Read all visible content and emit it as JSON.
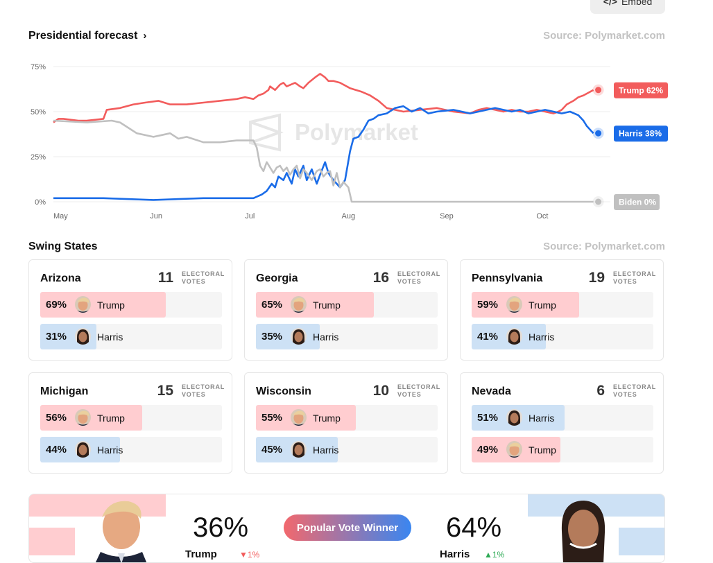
{
  "embed": {
    "label": "Embed",
    "icon": "code-icon"
  },
  "forecast": {
    "title": "Presidential forecast",
    "source": "Source: Polymarket.com"
  },
  "watermark": "Polymarket",
  "chart_data": {
    "type": "line",
    "x_labels": [
      "May",
      "Jun",
      "Jul",
      "Aug",
      "Sep",
      "Oct"
    ],
    "y_ticks": [
      "75%",
      "50%",
      "25%",
      "0%"
    ],
    "ylim": [
      0,
      75
    ],
    "grid": true,
    "x_unit": "days from May 1",
    "series": [
      {
        "name": "Trump",
        "label": "Trump 62%",
        "color": "#f25c5c",
        "x": [
          0,
          3,
          6,
          15,
          20,
          30,
          32,
          40,
          48,
          55,
          63,
          70,
          80,
          90,
          100,
          110,
          115,
          120,
          123,
          126,
          129,
          130,
          133,
          136,
          138,
          140,
          145,
          148,
          150,
          153,
          157,
          160,
          163,
          165,
          168,
          172,
          178,
          185,
          190,
          195,
          200,
          205,
          210,
          220,
          230,
          240,
          250,
          255,
          260,
          265,
          270,
          275,
          280,
          285,
          290,
          295,
          300,
          303,
          305,
          308,
          310,
          312,
          315,
          318,
          320,
          324
        ],
        "y": [
          44,
          46,
          46,
          45,
          45,
          46,
          51,
          52,
          54,
          55,
          56,
          54,
          54,
          55,
          56,
          57,
          58,
          57,
          59,
          60,
          62,
          64,
          62,
          65,
          66,
          64,
          66,
          64,
          63,
          66,
          69,
          71,
          69,
          67,
          67,
          66,
          63,
          61,
          59,
          56,
          52,
          51,
          50,
          51,
          52,
          50,
          49,
          51,
          52,
          51,
          50,
          51,
          50,
          50,
          51,
          50,
          49,
          50,
          51,
          54,
          55,
          56,
          58,
          59,
          60,
          62
        ]
      },
      {
        "name": "Harris",
        "label": "Harris 38%",
        "color": "#1a6ce8",
        "x": [
          0,
          30,
          60,
          90,
          120,
          125,
          128,
          131,
          133,
          135,
          138,
          140,
          143,
          145,
          147,
          150,
          152,
          155,
          158,
          160,
          163,
          165,
          168,
          172,
          175,
          178,
          180,
          183,
          186,
          189,
          192,
          195,
          200,
          205,
          210,
          215,
          220,
          225,
          230,
          240,
          250,
          255,
          260,
          265,
          270,
          275,
          280,
          285,
          290,
          295,
          300,
          305,
          310,
          315,
          318,
          320,
          324
        ],
        "y": [
          2,
          2,
          1,
          2,
          2,
          4,
          6,
          10,
          8,
          14,
          12,
          16,
          10,
          18,
          14,
          20,
          12,
          18,
          10,
          15,
          22,
          16,
          12,
          8,
          12,
          28,
          35,
          36,
          40,
          45,
          46,
          48,
          49,
          52,
          53,
          50,
          52,
          49,
          50,
          51,
          49,
          50,
          51,
          52,
          51,
          50,
          51,
          49,
          50,
          51,
          50,
          49,
          50,
          48,
          45,
          42,
          38
        ]
      },
      {
        "name": "Biden",
        "label": "Biden 0%",
        "color": "#c0c0c0",
        "x": [
          0,
          20,
          35,
          40,
          45,
          50,
          60,
          65,
          70,
          75,
          80,
          90,
          100,
          110,
          120,
          122,
          124,
          126,
          128,
          130,
          132,
          134,
          136,
          138,
          140,
          142,
          144,
          146,
          148,
          150,
          152,
          155,
          158,
          160,
          162,
          164,
          166,
          168,
          170,
          172,
          174,
          177,
          179,
          181,
          183,
          190,
          230,
          270,
          300,
          324
        ],
        "y": [
          45,
          44,
          45,
          44,
          41,
          38,
          36,
          37,
          38,
          35,
          36,
          33,
          33,
          34,
          34,
          30,
          20,
          17,
          22,
          19,
          16,
          19,
          20,
          17,
          19,
          15,
          18,
          20,
          13,
          18,
          16,
          12,
          17,
          18,
          14,
          16,
          17,
          9,
          16,
          8,
          11,
          8,
          0,
          0,
          0,
          0,
          0,
          0,
          0,
          0
        ]
      }
    ]
  },
  "swing": {
    "title": "Swing States",
    "source": "Source: Polymarket.com"
  },
  "states": [
    {
      "name": "Arizona",
      "ev": "11",
      "ev_label1": "ELECTORAL",
      "ev_label2": "VOTES",
      "rows": [
        {
          "pct": "69%",
          "cand": "Trump",
          "party": "rep",
          "value": 69
        },
        {
          "pct": "31%",
          "cand": "Harris",
          "party": "dem",
          "value": 31
        }
      ]
    },
    {
      "name": "Georgia",
      "ev": "16",
      "ev_label1": "ELECTORAL",
      "ev_label2": "VOTES",
      "rows": [
        {
          "pct": "65%",
          "cand": "Trump",
          "party": "rep",
          "value": 65
        },
        {
          "pct": "35%",
          "cand": "Harris",
          "party": "dem",
          "value": 35
        }
      ]
    },
    {
      "name": "Pennsylvania",
      "ev": "19",
      "ev_label1": "ELECTORAL",
      "ev_label2": "VOTES",
      "rows": [
        {
          "pct": "59%",
          "cand": "Trump",
          "party": "rep",
          "value": 59
        },
        {
          "pct": "41%",
          "cand": "Harris",
          "party": "dem",
          "value": 41
        }
      ]
    },
    {
      "name": "Michigan",
      "ev": "15",
      "ev_label1": "ELECTORAL",
      "ev_label2": "VOTES",
      "rows": [
        {
          "pct": "56%",
          "cand": "Trump",
          "party": "rep",
          "value": 56
        },
        {
          "pct": "44%",
          "cand": "Harris",
          "party": "dem",
          "value": 44
        }
      ]
    },
    {
      "name": "Wisconsin",
      "ev": "10",
      "ev_label1": "ELECTORAL",
      "ev_label2": "VOTES",
      "rows": [
        {
          "pct": "55%",
          "cand": "Trump",
          "party": "rep",
          "value": 55
        },
        {
          "pct": "45%",
          "cand": "Harris",
          "party": "dem",
          "value": 45
        }
      ]
    },
    {
      "name": "Nevada",
      "ev": "6",
      "ev_label1": "ELECTORAL",
      "ev_label2": "VOTES",
      "rows": [
        {
          "pct": "51%",
          "cand": "Harris",
          "party": "dem",
          "value": 51
        },
        {
          "pct": "49%",
          "cand": "Trump",
          "party": "rep",
          "value": 49
        }
      ]
    }
  ],
  "popular": {
    "pill": "Popular Vote Winner",
    "left_pct": "36%",
    "left_name": "Trump",
    "left_change": "▼1%",
    "right_pct": "64%",
    "right_name": "Harris",
    "right_change": "▲1%"
  },
  "colors": {
    "rep": "#f25c5c",
    "dem": "#1a6ce8",
    "rep_light": "#ffcdd0",
    "dem_light": "#cde1f5"
  }
}
